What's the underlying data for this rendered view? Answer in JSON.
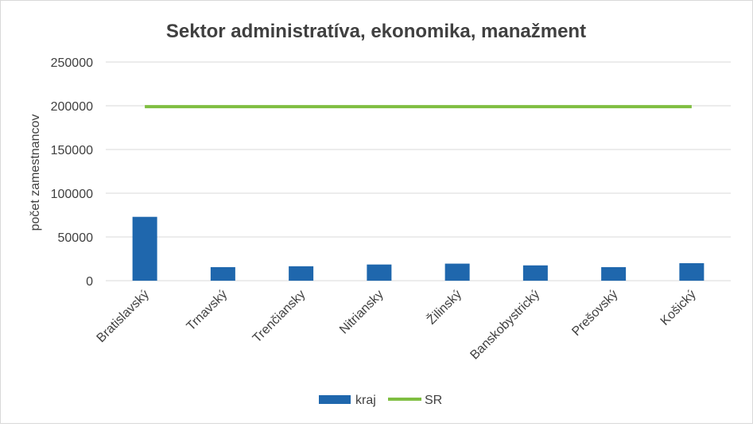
{
  "chart_data": {
    "type": "bar",
    "title": "Sektor administratíva, ekonomika, manažment",
    "xlabel": "",
    "ylabel": "počet zamestnancov",
    "ylim": [
      0,
      250000
    ],
    "yticks": [
      "250000",
      "200000",
      "150000",
      "100000",
      "50000",
      "0"
    ],
    "categories": [
      "Bratislavský",
      "Trnavský",
      "Trenčiansky",
      "Nitriansky",
      "Žilinský",
      "Banskobystrický",
      "Prešovský",
      "Košický"
    ],
    "series": [
      {
        "name": "kraj",
        "kind": "bar",
        "color": "#1f67ad",
        "values": [
          73000,
          15500,
          16500,
          18500,
          19500,
          17500,
          15500,
          20000
        ]
      },
      {
        "name": "SR",
        "kind": "line",
        "color": "#7fbe41",
        "values": [
          199000,
          199000,
          199000,
          199000,
          199000,
          199000,
          199000,
          199000
        ]
      }
    ],
    "grid": true,
    "legend": "bottom-center"
  }
}
